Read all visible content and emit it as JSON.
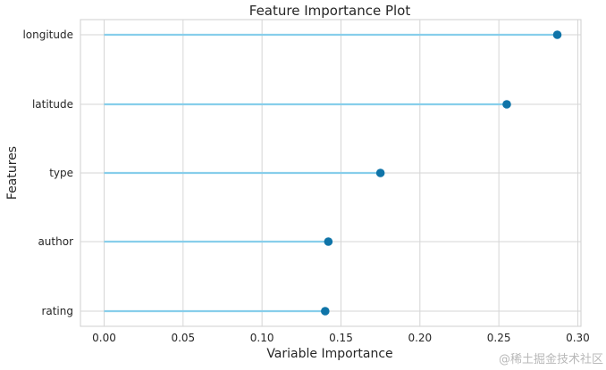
{
  "chart_data": {
    "type": "lollipop",
    "title": "Feature Importance Plot",
    "xlabel": "Variable Importance",
    "ylabel": "Features",
    "categories": [
      "longitude",
      "latitude",
      "type",
      "author",
      "rating"
    ],
    "values": [
      0.287,
      0.255,
      0.175,
      0.142,
      0.14
    ],
    "xlim": [
      -0.015,
      0.302
    ],
    "xticks": [
      0.0,
      0.05,
      0.1,
      0.15,
      0.2,
      0.25,
      0.3
    ],
    "xtick_labels": [
      "0.00",
      "0.05",
      "0.10",
      "0.15",
      "0.20",
      "0.25",
      "0.30"
    ],
    "grid": true,
    "colors": {
      "stem": "#87ceeb",
      "marker": "#0f74a8",
      "grid": "#d6d6d6",
      "frame": "#cfcfcf",
      "text": "#262626",
      "background": "#ffffff"
    }
  },
  "watermark": "@稀土掘金技术社区"
}
